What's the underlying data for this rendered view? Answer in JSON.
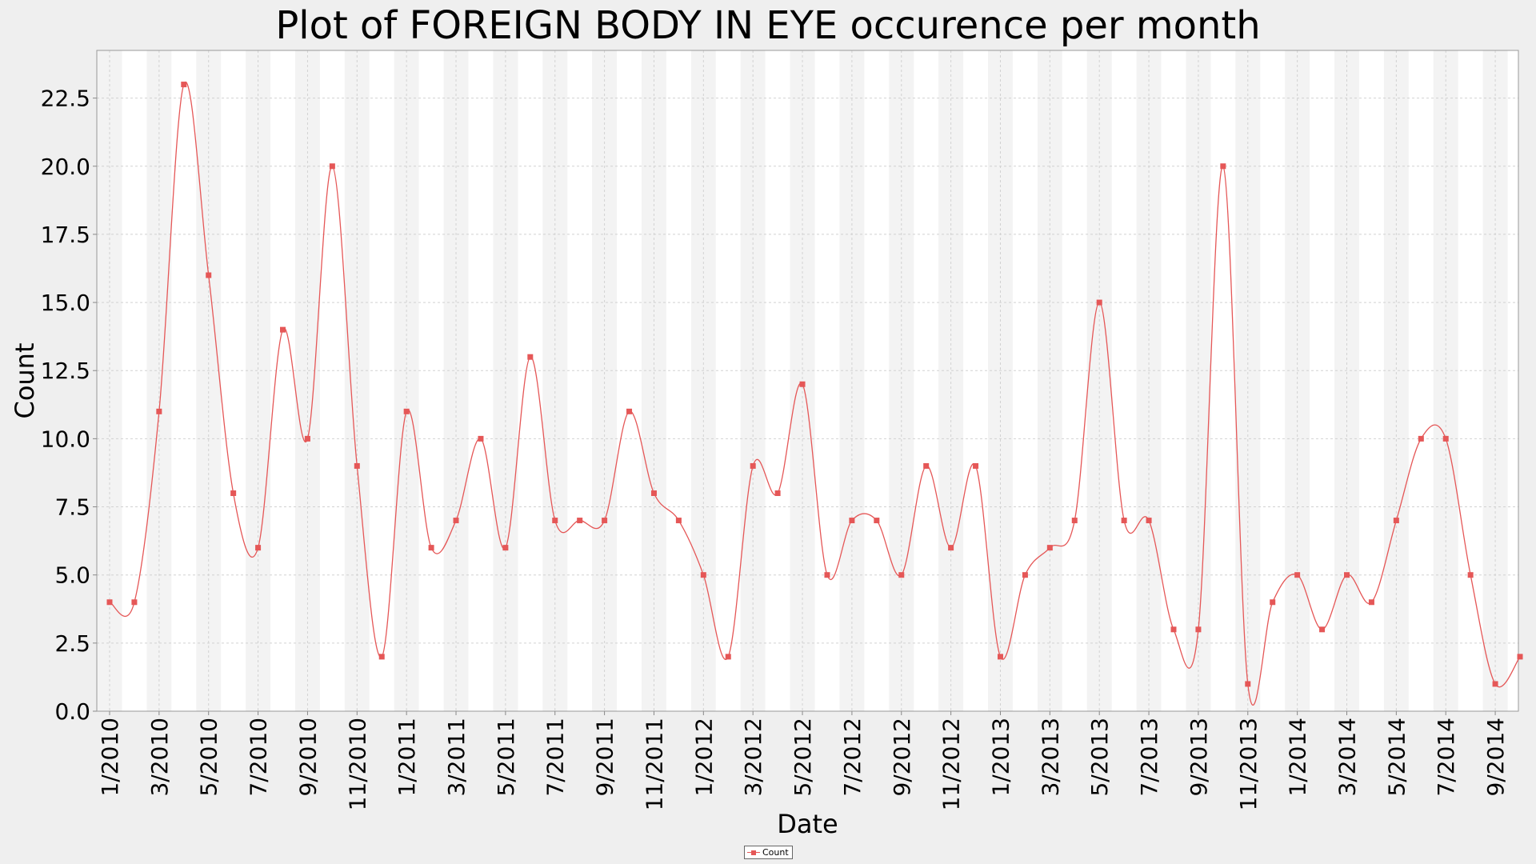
{
  "chart_data": {
    "type": "line",
    "title": "Plot of FOREIGN BODY IN EYE occurence per month",
    "xlabel": "Date",
    "ylabel": "Count",
    "ylim": [
      0,
      24.25
    ],
    "y_ticks": [
      "0.0",
      "2.5",
      "5.0",
      "7.5",
      "10.0",
      "12.5",
      "15.0",
      "17.5",
      "20.0",
      "22.5"
    ],
    "x_ticks": [
      "1/2010",
      "3/2010",
      "5/2010",
      "7/2010",
      "9/2010",
      "11/2010",
      "1/2011",
      "3/2011",
      "5/2011",
      "7/2011",
      "9/2011",
      "11/2011",
      "1/2012",
      "3/2012",
      "5/2012",
      "7/2012",
      "9/2012",
      "11/2012",
      "1/2013",
      "3/2013",
      "5/2013",
      "7/2013",
      "9/2013",
      "11/2013",
      "1/2014",
      "3/2014",
      "5/2014",
      "7/2014",
      "9/2014"
    ],
    "grid": true,
    "legend": "bottom-center",
    "color": "#e55757",
    "series": [
      {
        "name": "Count",
        "x": [
          "1/2010",
          "2/2010",
          "3/2010",
          "4/2010",
          "5/2010",
          "6/2010",
          "7/2010",
          "8/2010",
          "9/2010",
          "10/2010",
          "11/2010",
          "12/2010",
          "1/2011",
          "2/2011",
          "3/2011",
          "4/2011",
          "5/2011",
          "6/2011",
          "7/2011",
          "8/2011",
          "9/2011",
          "10/2011",
          "11/2011",
          "12/2011",
          "1/2012",
          "2/2012",
          "3/2012",
          "4/2012",
          "5/2012",
          "6/2012",
          "7/2012",
          "8/2012",
          "9/2012",
          "10/2012",
          "11/2012",
          "12/2012",
          "1/2013",
          "2/2013",
          "3/2013",
          "4/2013",
          "5/2013",
          "6/2013",
          "7/2013",
          "8/2013",
          "9/2013",
          "10/2013",
          "11/2013",
          "12/2013",
          "1/2014",
          "2/2014",
          "3/2014",
          "4/2014",
          "5/2014",
          "6/2014",
          "7/2014",
          "8/2014",
          "9/2014",
          "10/2014"
        ],
        "values": [
          4,
          4,
          11,
          23,
          16,
          8,
          6,
          14,
          10,
          20,
          9,
          2,
          11,
          6,
          7,
          10,
          6,
          13,
          7,
          7,
          7,
          11,
          8,
          7,
          5,
          2,
          9,
          8,
          12,
          5,
          7,
          7,
          5,
          9,
          6,
          9,
          2,
          5,
          6,
          7,
          15,
          7,
          7,
          3,
          3,
          20,
          1,
          4,
          5,
          3,
          5,
          4,
          7,
          10,
          10,
          5,
          1,
          2
        ]
      }
    ]
  }
}
